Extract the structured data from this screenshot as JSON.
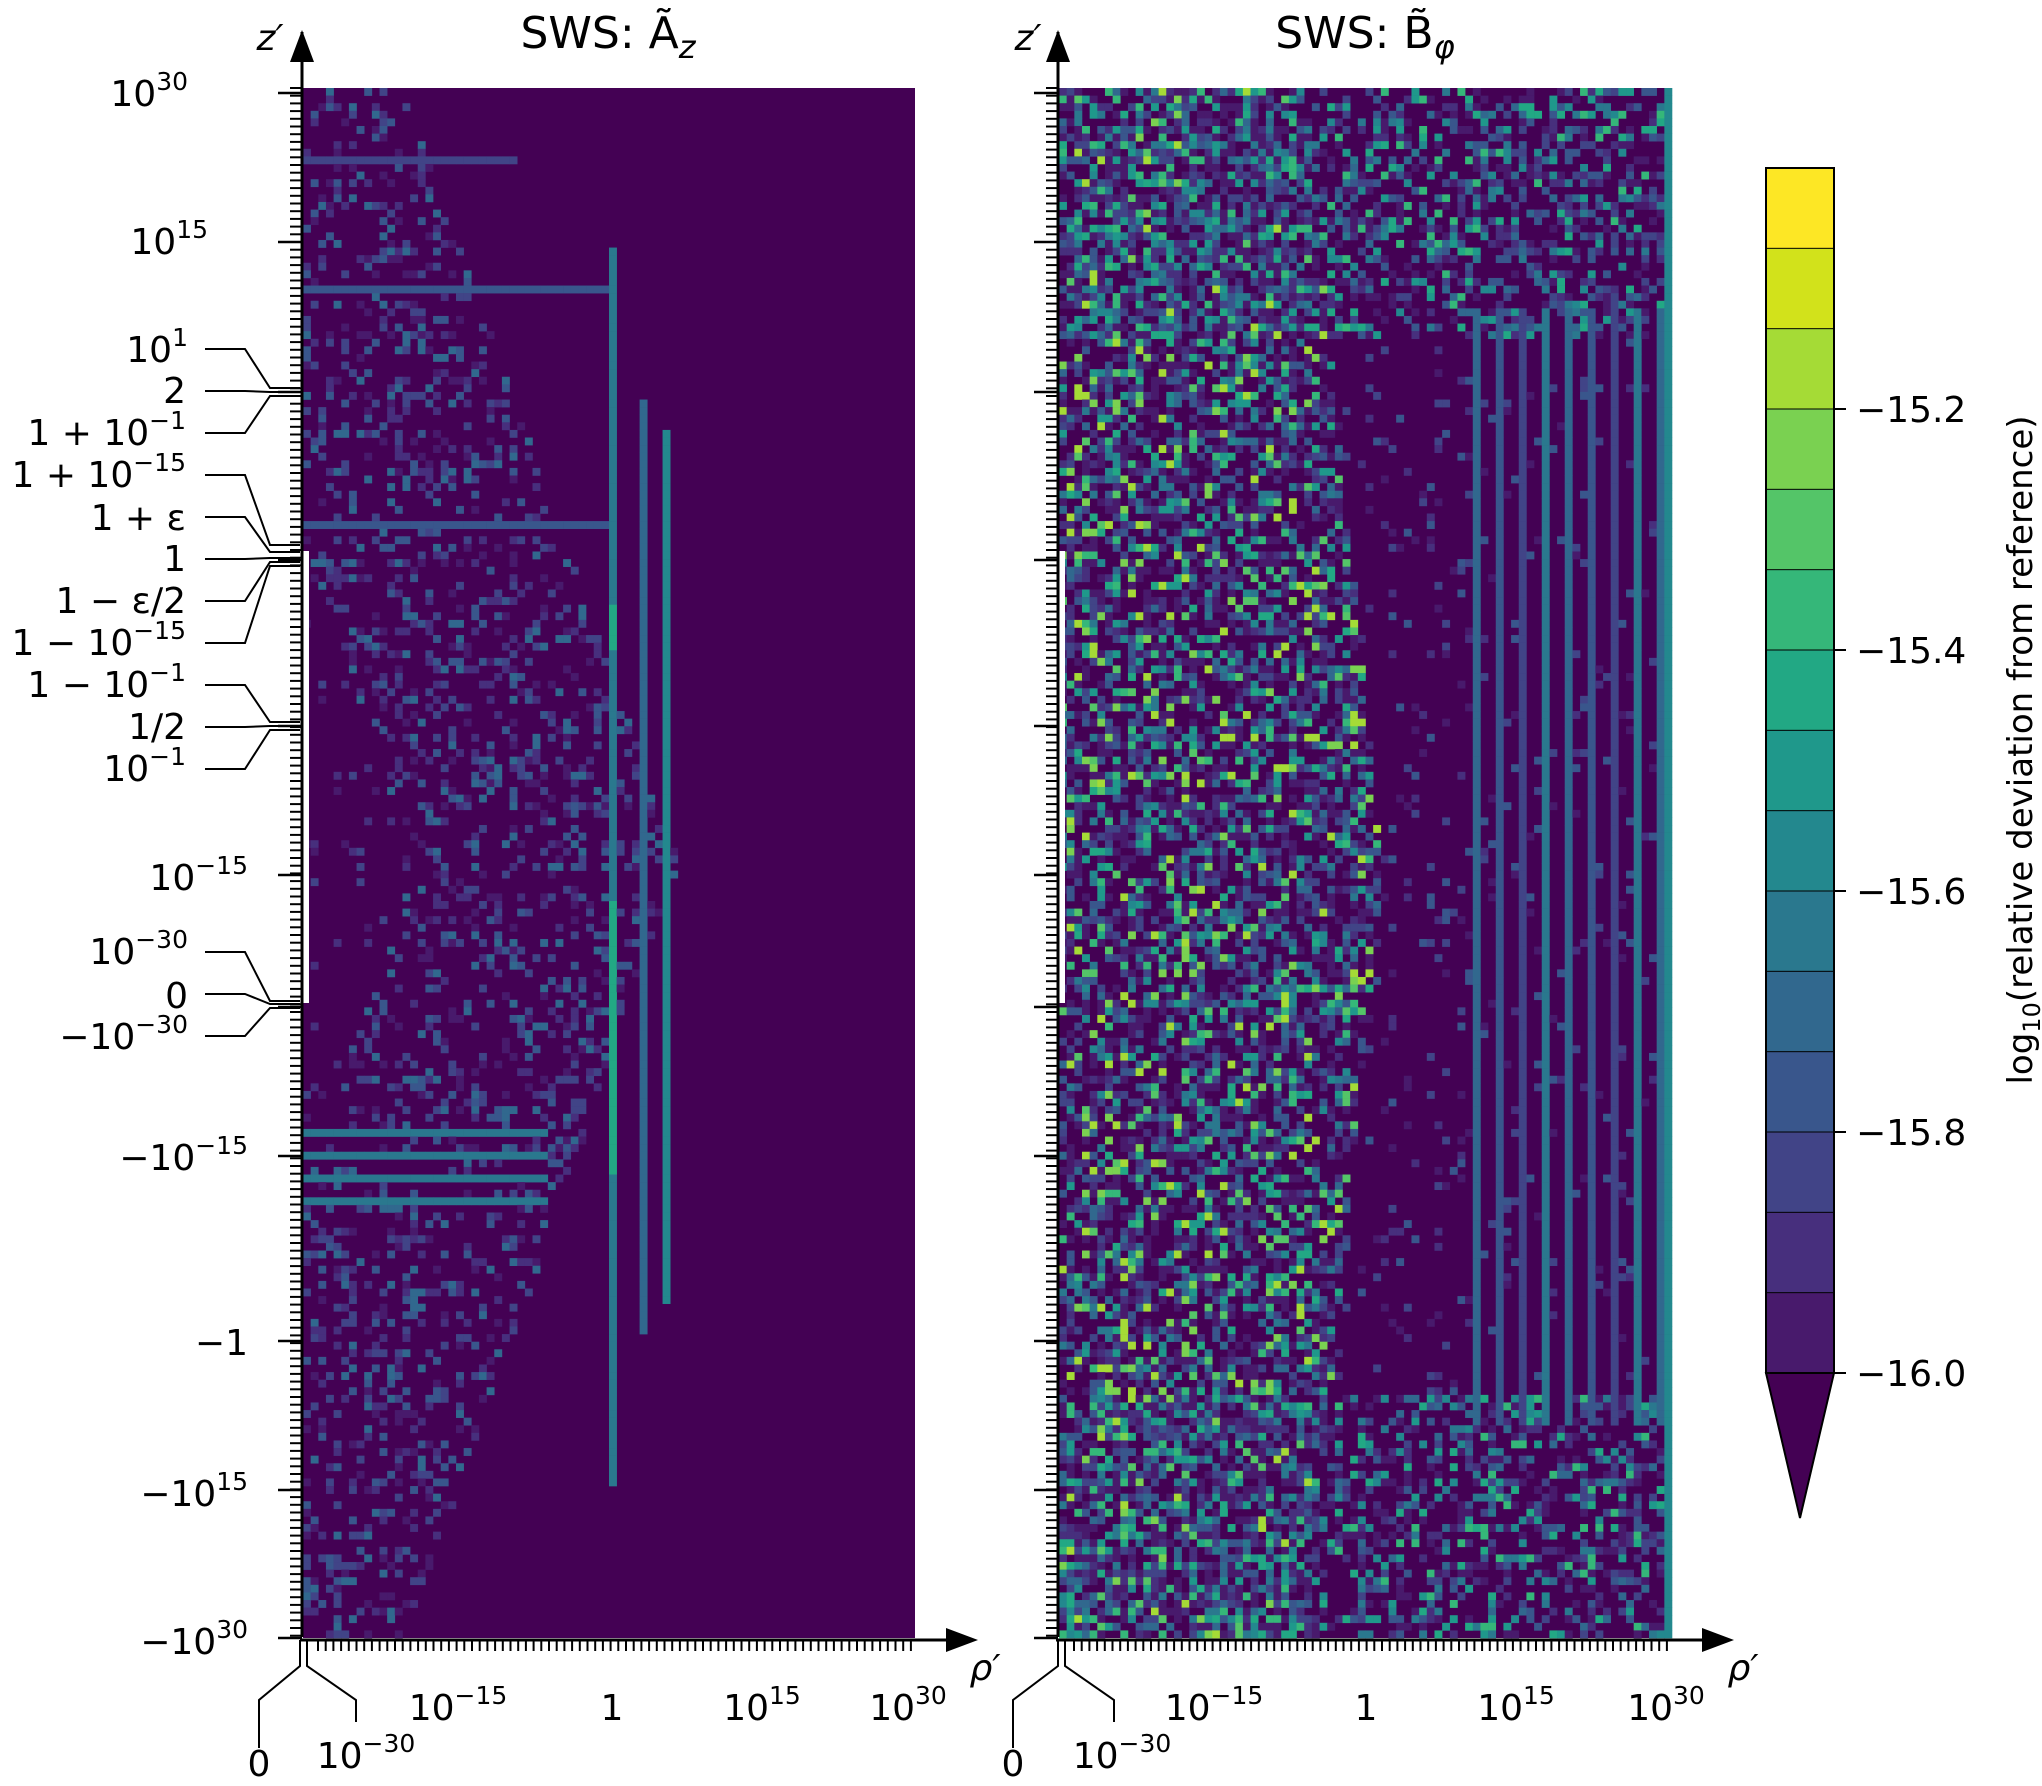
{
  "chart_data": [
    {
      "type": "heatmap",
      "title": "SWS: Ã_z",
      "xlabel": "ρ′",
      "ylabel": "z′",
      "x_ticks": [
        "10⁻¹⁵",
        "1",
        "10¹⁵",
        "10³⁰"
      ],
      "x_ticks_special": [
        "0",
        "10⁻³⁰"
      ],
      "y_ticks": [
        "10³⁰",
        "10¹⁵",
        "10¹",
        "2",
        "1 + 10⁻¹",
        "1 + 10⁻¹⁵",
        "1 + ε",
        "1",
        "1 − ε/2",
        "1 − 10⁻¹⁵",
        "1 − 10⁻¹",
        "1/2",
        "10⁻¹",
        "10⁻¹⁵",
        "10⁻³⁰",
        "0",
        "−10⁻³⁰",
        "−10⁻¹⁵",
        "−1",
        "−10¹⁵",
        "−10³⁰"
      ],
      "grid": false,
      "value_range": [
        -16.0,
        -15.1
      ],
      "pattern_note": "mostly at floor value −16.0; scattered cells up to about −15.5 in a diamond-shaped band"
    },
    {
      "type": "heatmap",
      "title": "SWS: B̃_φ",
      "xlabel": "ρ′",
      "ylabel": "z′",
      "x_ticks": [
        "10⁻¹⁵",
        "1",
        "10¹⁵",
        "10³⁰"
      ],
      "x_ticks_special": [
        "0",
        "10⁻³⁰"
      ],
      "grid": false,
      "value_range": [
        -16.0,
        -15.1
      ],
      "pattern_note": "noisy cells across most of the plane with values up to about −15.2"
    }
  ],
  "colorbar": {
    "label": "log₁₀(relative deviation from reference)",
    "ticks": [
      "−15.2",
      "−15.4",
      "−15.6",
      "−15.8",
      "−16.0"
    ],
    "levels": [
      -16.0,
      -15.9333,
      -15.8667,
      -15.8,
      -15.7333,
      -15.6667,
      -15.6,
      -15.5333,
      -15.4667,
      -15.4,
      -15.3333,
      -15.2667,
      -15.2,
      -15.1333,
      -15.0667
    ],
    "colors": [
      "#440154",
      "#481a6c",
      "#472f7d",
      "#414487",
      "#39568c",
      "#31688e",
      "#2a788e",
      "#23888e",
      "#1f988b",
      "#22a884",
      "#35b779",
      "#54c568",
      "#7ad151",
      "#a5db36",
      "#d2e21b",
      "#fde725"
    ],
    "extend": "min"
  }
}
